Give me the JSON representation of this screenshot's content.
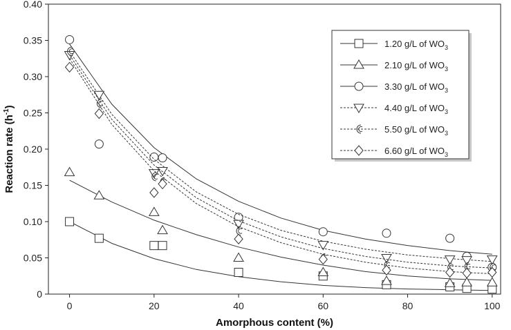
{
  "chart_data": {
    "type": "scatter",
    "xlabel": "Amorphous content (%)",
    "ylabel": "Reaction rate (h",
    "ylabel_sup": "-1",
    "ylabel_close": ")",
    "xlim": [
      -5,
      102
    ],
    "ylim": [
      0,
      0.4
    ],
    "xticks": [
      0,
      20,
      40,
      60,
      80,
      100
    ],
    "yticks": [
      0,
      0.05,
      0.1,
      0.15,
      0.2,
      0.25,
      0.3,
      0.35,
      0.4
    ],
    "ytick_labels": [
      "0",
      "0.05",
      "0.10",
      "0.15",
      "0.20",
      "0.25",
      "0.30",
      "0.35",
      "0.40"
    ],
    "legend_position": "top-right",
    "series": [
      {
        "name": "1.20 g/L of WO",
        "sub": "3",
        "marker": "square",
        "line": "solid",
        "points": [
          [
            0,
            0.1
          ],
          [
            7,
            0.077
          ],
          [
            20,
            0.067
          ],
          [
            22,
            0.067
          ],
          [
            40,
            0.03
          ],
          [
            60,
            0.025
          ],
          [
            75,
            0.013
          ],
          [
            90,
            0.01
          ],
          [
            94,
            0.008
          ],
          [
            100,
            0.007
          ]
        ],
        "fit": [
          [
            0,
            0.1
          ],
          [
            10,
            0.07
          ],
          [
            20,
            0.049
          ],
          [
            30,
            0.034
          ],
          [
            40,
            0.024
          ],
          [
            50,
            0.017
          ],
          [
            60,
            0.012
          ],
          [
            70,
            0.009
          ],
          [
            80,
            0.007
          ],
          [
            90,
            0.006
          ],
          [
            100,
            0.005
          ]
        ]
      },
      {
        "name": "2.10 g/L of WO",
        "sub": "3",
        "marker": "triangle-up",
        "line": "solid",
        "points": [
          [
            0,
            0.168
          ],
          [
            7,
            0.136
          ],
          [
            20,
            0.113
          ],
          [
            22,
            0.088
          ],
          [
            40,
            0.05
          ],
          [
            60,
            0.03
          ],
          [
            75,
            0.018
          ],
          [
            90,
            0.015
          ],
          [
            94,
            0.016
          ],
          [
            100,
            0.016
          ]
        ],
        "fit": [
          [
            0,
            0.157
          ],
          [
            10,
            0.127
          ],
          [
            20,
            0.102
          ],
          [
            30,
            0.082
          ],
          [
            40,
            0.065
          ],
          [
            50,
            0.051
          ],
          [
            60,
            0.04
          ],
          [
            70,
            0.031
          ],
          [
            80,
            0.025
          ],
          [
            90,
            0.021
          ],
          [
            100,
            0.019
          ]
        ]
      },
      {
        "name": "3.30 g/L of WO",
        "sub": "3",
        "marker": "circle",
        "line": "solid",
        "points": [
          [
            0,
            0.351
          ],
          [
            7,
            0.207
          ],
          [
            20,
            0.189
          ],
          [
            22,
            0.188
          ],
          [
            40,
            0.106
          ],
          [
            60,
            0.086
          ],
          [
            75,
            0.084
          ],
          [
            90,
            0.077
          ],
          [
            94,
            0.052
          ],
          [
            100,
            0.037
          ]
        ],
        "fit": [
          [
            0,
            0.345
          ],
          [
            10,
            0.262
          ],
          [
            20,
            0.202
          ],
          [
            30,
            0.159
          ],
          [
            40,
            0.128
          ],
          [
            50,
            0.105
          ],
          [
            60,
            0.088
          ],
          [
            70,
            0.076
          ],
          [
            80,
            0.067
          ],
          [
            90,
            0.06
          ],
          [
            100,
            0.055
          ]
        ]
      },
      {
        "name": "4.40 g/L of WO",
        "sub": "3",
        "marker": "triangle-down",
        "line": "dashed",
        "points": [
          [
            0,
            0.33
          ],
          [
            7,
            0.275
          ],
          [
            20,
            0.167
          ],
          [
            22,
            0.17
          ],
          [
            40,
            0.097
          ],
          [
            60,
            0.068
          ],
          [
            75,
            0.05
          ],
          [
            90,
            0.048
          ],
          [
            94,
            0.047
          ],
          [
            100,
            0.048
          ]
        ],
        "fit": [
          [
            0,
            0.335
          ],
          [
            10,
            0.248
          ],
          [
            20,
            0.186
          ],
          [
            30,
            0.141
          ],
          [
            40,
            0.11
          ],
          [
            50,
            0.088
          ],
          [
            60,
            0.073
          ],
          [
            70,
            0.062
          ],
          [
            80,
            0.054
          ],
          [
            90,
            0.049
          ],
          [
            100,
            0.045
          ]
        ]
      },
      {
        "name": "5.50 g/L of WO",
        "sub": "3",
        "marker": "crescent",
        "line": "dashed",
        "points": [
          [
            0,
            0.335
          ],
          [
            7,
            0.263
          ],
          [
            20,
            0.162
          ],
          [
            22,
            0.155
          ],
          [
            40,
            0.087
          ],
          [
            60,
            0.05
          ],
          [
            75,
            0.04
          ],
          [
            90,
            0.037
          ],
          [
            94,
            0.038
          ],
          [
            100,
            0.037
          ]
        ],
        "fit": [
          [
            0,
            0.33
          ],
          [
            10,
            0.241
          ],
          [
            20,
            0.178
          ],
          [
            30,
            0.133
          ],
          [
            40,
            0.101
          ],
          [
            50,
            0.079
          ],
          [
            60,
            0.063
          ],
          [
            70,
            0.052
          ],
          [
            80,
            0.044
          ],
          [
            90,
            0.039
          ],
          [
            100,
            0.036
          ]
        ]
      },
      {
        "name": "6.60 g/L of WO",
        "sub": "3",
        "marker": "diamond",
        "line": "dashed",
        "points": [
          [
            0,
            0.313
          ],
          [
            7,
            0.249
          ],
          [
            20,
            0.14
          ],
          [
            22,
            0.152
          ],
          [
            40,
            0.076
          ],
          [
            60,
            0.048
          ],
          [
            75,
            0.033
          ],
          [
            90,
            0.03
          ],
          [
            94,
            0.029
          ],
          [
            100,
            0.03
          ]
        ],
        "fit": [
          [
            0,
            0.325
          ],
          [
            10,
            0.234
          ],
          [
            20,
            0.17
          ],
          [
            30,
            0.125
          ],
          [
            40,
            0.093
          ],
          [
            50,
            0.071
          ],
          [
            60,
            0.055
          ],
          [
            70,
            0.044
          ],
          [
            80,
            0.036
          ],
          [
            90,
            0.031
          ],
          [
            100,
            0.028
          ]
        ]
      }
    ]
  }
}
